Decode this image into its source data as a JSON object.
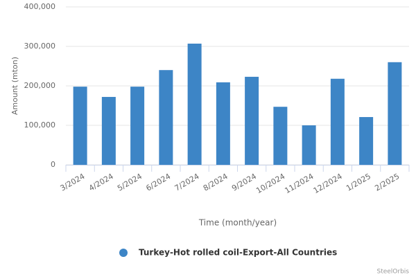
{
  "chart_data": {
    "type": "bar",
    "x_label": "Time (month/year)",
    "y_label": "Amount (mton)",
    "categories": [
      "3/2024",
      "4/2024",
      "5/2024",
      "6/2024",
      "7/2024",
      "8/2024",
      "9/2024",
      "10/2024",
      "11/2024",
      "12/2024",
      "1/2025",
      "2/2025"
    ],
    "series": [
      {
        "name": "Turkey-Hot rolled coil-Export-All Countries",
        "color": "#3d85c6",
        "values": [
          198000,
          172000,
          198000,
          240000,
          307000,
          209000,
          223000,
          147000,
          100000,
          218000,
          121000,
          260000
        ]
      }
    ],
    "ylim": [
      0,
      400000
    ],
    "yticks": [
      0,
      {
        "value": 100000,
        "label": "100,000"
      },
      {
        "value": 200000,
        "label": "200,000"
      },
      {
        "value": 300000,
        "label": "300,000"
      },
      {
        "value": 400000,
        "label": "400,000"
      }
    ],
    "grid": true,
    "legend": "bottom",
    "credits": "SteelOrbis"
  }
}
